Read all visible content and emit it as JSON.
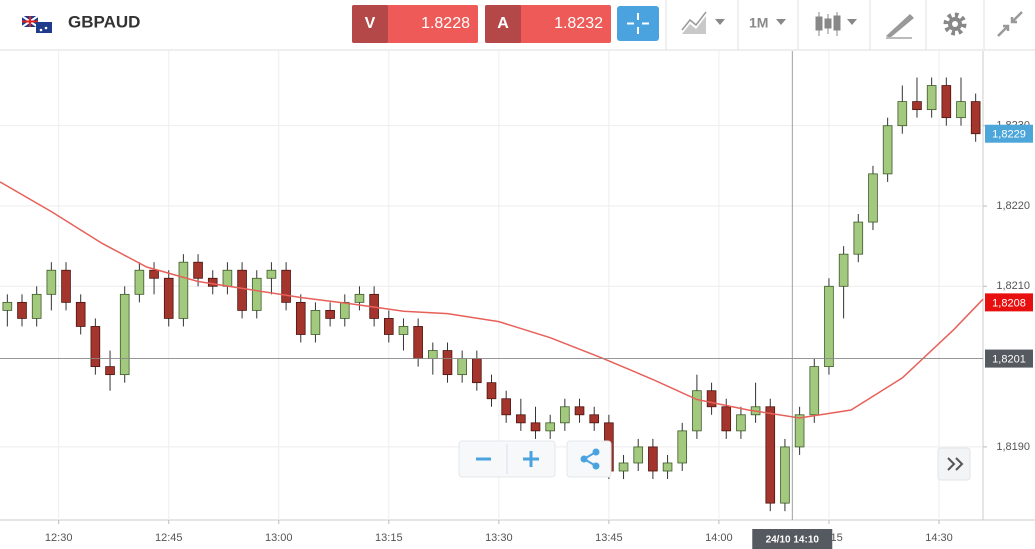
{
  "toolbar": {
    "symbol": "GBPAUD",
    "sell": {
      "label": "V",
      "price": "1.8228"
    },
    "buy": {
      "label": "A",
      "price": "1.8232"
    },
    "timeframe": "1M"
  },
  "chart_data": {
    "type": "candlestick",
    "x": [
      "12:23",
      "12:25",
      "12:27",
      "12:29",
      "12:31",
      "12:33",
      "12:35",
      "12:37",
      "12:39",
      "12:41",
      "12:43",
      "12:45",
      "12:47",
      "12:49",
      "12:51",
      "12:53",
      "12:55",
      "12:57",
      "12:59",
      "13:01",
      "13:03",
      "13:05",
      "13:07",
      "13:09",
      "13:11",
      "13:13",
      "13:15",
      "13:17",
      "13:19",
      "13:21",
      "13:23",
      "13:25",
      "13:27",
      "13:29",
      "13:31",
      "13:33",
      "13:35",
      "13:37",
      "13:39",
      "13:41",
      "13:43",
      "13:45",
      "13:47",
      "13:49",
      "13:51",
      "13:53",
      "13:55",
      "13:57",
      "13:59",
      "14:01",
      "14:03",
      "14:05",
      "14:07",
      "14:09",
      "14:11",
      "14:13",
      "14:15",
      "14:17",
      "14:19",
      "14:21",
      "14:23",
      "14:25",
      "14:27",
      "14:29",
      "14:31",
      "14:33",
      "14:35"
    ],
    "open": [
      1.8207,
      1.8208,
      1.8206,
      1.8209,
      1.8212,
      1.8208,
      1.8205,
      1.82,
      1.8199,
      1.8209,
      1.8212,
      1.8211,
      1.8206,
      1.8213,
      1.8211,
      1.821,
      1.8212,
      1.8207,
      1.8211,
      1.8212,
      1.8208,
      1.8204,
      1.8207,
      1.8206,
      1.8208,
      1.8209,
      1.8206,
      1.8204,
      1.8205,
      1.8201,
      1.8202,
      1.8199,
      1.8201,
      1.8198,
      1.8196,
      1.8194,
      1.8193,
      1.8192,
      1.8193,
      1.8195,
      1.8194,
      1.8193,
      1.8187,
      1.8188,
      1.819,
      1.8187,
      1.8188,
      1.8192,
      1.8197,
      1.8195,
      1.8192,
      1.8194,
      1.8195,
      1.8183,
      1.819,
      1.8194,
      1.82,
      1.821,
      1.8214,
      1.8218,
      1.8224,
      1.823,
      1.8233,
      1.8232,
      1.8235,
      1.8231,
      1.8233
    ],
    "high": [
      1.8209,
      1.8209,
      1.821,
      1.8213,
      1.8213,
      1.8209,
      1.8206,
      1.8202,
      1.821,
      1.8213,
      1.8213,
      1.8212,
      1.8214,
      1.8214,
      1.8212,
      1.8213,
      1.8213,
      1.8212,
      1.8213,
      1.8213,
      1.8209,
      1.8208,
      1.8208,
      1.8209,
      1.821,
      1.821,
      1.8207,
      1.8206,
      1.8206,
      1.8203,
      1.8203,
      1.8202,
      1.8202,
      1.8199,
      1.8197,
      1.8196,
      1.8195,
      1.8194,
      1.8196,
      1.8196,
      1.8195,
      1.8194,
      1.8189,
      1.8191,
      1.8191,
      1.8189,
      1.8193,
      1.8199,
      1.8198,
      1.8196,
      1.8195,
      1.8198,
      1.8196,
      1.8191,
      1.8195,
      1.8201,
      1.8211,
      1.8215,
      1.8219,
      1.8225,
      1.8231,
      1.8235,
      1.8236,
      1.8236,
      1.8236,
      1.8236,
      1.8234
    ],
    "low": [
      1.8205,
      1.8205,
      1.8205,
      1.8207,
      1.8207,
      1.8204,
      1.8199,
      1.8197,
      1.8198,
      1.8208,
      1.8209,
      1.8205,
      1.8205,
      1.821,
      1.8209,
      1.8209,
      1.8206,
      1.8206,
      1.8209,
      1.8207,
      1.8203,
      1.8203,
      1.8205,
      1.8205,
      1.8207,
      1.8205,
      1.8203,
      1.8202,
      1.82,
      1.8199,
      1.8198,
      1.8198,
      1.8197,
      1.8195,
      1.8193,
      1.8192,
      1.8191,
      1.8191,
      1.8192,
      1.8193,
      1.8192,
      1.8186,
      1.8186,
      1.8187,
      1.8186,
      1.8186,
      1.8187,
      1.8191,
      1.8194,
      1.8191,
      1.8191,
      1.8193,
      1.8182,
      1.8182,
      1.8189,
      1.8193,
      1.8199,
      1.8206,
      1.8213,
      1.8217,
      1.8223,
      1.8229,
      1.8231,
      1.8231,
      1.823,
      1.823,
      1.8228
    ],
    "close": [
      1.8208,
      1.8206,
      1.8209,
      1.8212,
      1.8208,
      1.8205,
      1.82,
      1.8199,
      1.8209,
      1.8212,
      1.8211,
      1.8206,
      1.8213,
      1.8211,
      1.821,
      1.8212,
      1.8207,
      1.8211,
      1.8212,
      1.8208,
      1.8204,
      1.8207,
      1.8206,
      1.8208,
      1.8209,
      1.8206,
      1.8204,
      1.8205,
      1.8201,
      1.8202,
      1.8199,
      1.8201,
      1.8198,
      1.8196,
      1.8194,
      1.8193,
      1.8192,
      1.8193,
      1.8195,
      1.8194,
      1.8193,
      1.8187,
      1.8188,
      1.819,
      1.8187,
      1.8188,
      1.8192,
      1.8197,
      1.8195,
      1.8192,
      1.8194,
      1.8195,
      1.8183,
      1.819,
      1.8194,
      1.82,
      1.821,
      1.8214,
      1.8218,
      1.8224,
      1.823,
      1.8233,
      1.8232,
      1.8235,
      1.8231,
      1.8233,
      1.8229
    ],
    "up_color": "#a3c97e",
    "down_color": "#a3352c",
    "line": {
      "color": "#e8605a",
      "x": [
        "12:22",
        "12:29",
        "12:36",
        "12:42",
        "12:49",
        "12:56",
        "13:03",
        "13:10",
        "13:17",
        "13:23",
        "13:30",
        "13:37",
        "13:44",
        "13:51",
        "13:57",
        "14:04",
        "14:11",
        "14:18",
        "14:25",
        "14:32",
        "14:36"
      ],
      "values": [
        1.8223,
        1.82193,
        1.82153,
        1.82124,
        1.82106,
        1.82096,
        1.82086,
        1.82078,
        1.82069,
        1.82066,
        1.82056,
        1.82036,
        1.82011,
        1.81984,
        1.81959,
        1.81946,
        1.81936,
        1.81946,
        1.81986,
        1.82046,
        1.82084
      ]
    },
    "xlim": [
      "12:22",
      "14:36"
    ],
    "xticks": [
      "12:30",
      "12:45",
      "13:00",
      "13:15",
      "13:30",
      "13:45",
      "14:00",
      "14:15",
      "14:30"
    ],
    "ylim": [
      1.81809,
      1.82393
    ],
    "yticks": [
      {
        "value": 1.819,
        "label": "1,8190"
      },
      {
        "value": 1.821,
        "label": "1,8210"
      },
      {
        "value": 1.822,
        "label": "1,8220"
      },
      {
        "value": 1.823,
        "label": "1,8230"
      }
    ],
    "grid": true,
    "price_tags": [
      {
        "value": 1.8229,
        "label": "1,8229",
        "color": "#4da6da"
      },
      {
        "value": 1.8208,
        "label": "1,8208",
        "color": "#e8100f"
      }
    ],
    "crosshair": {
      "label": "24/10 14:10",
      "price": {
        "value": 1.8201,
        "label": "1,8201"
      },
      "color": "#555a60"
    }
  }
}
